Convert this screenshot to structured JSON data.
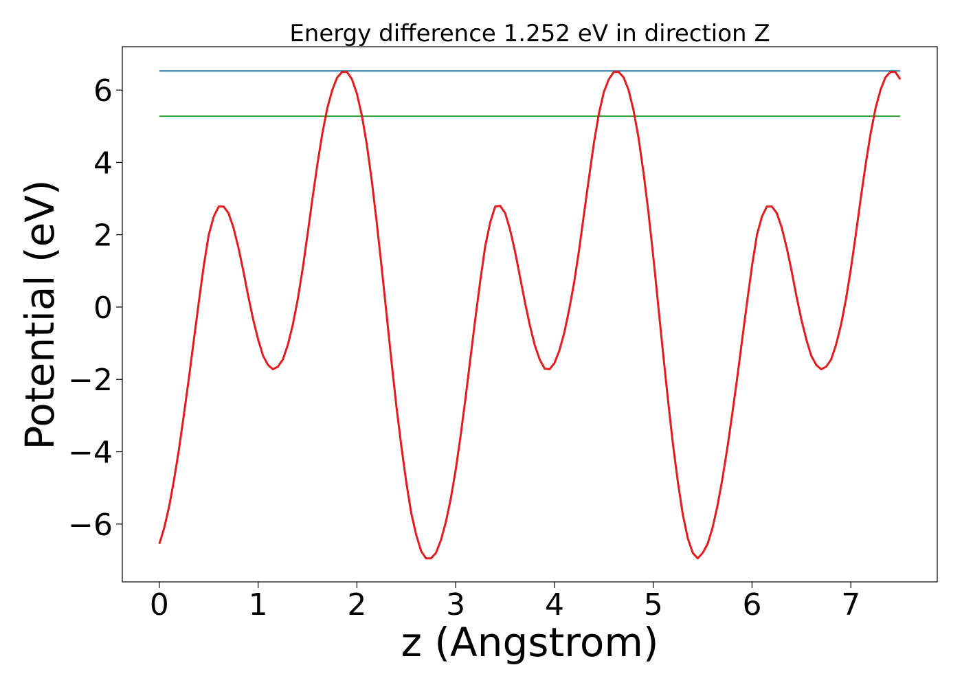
{
  "chart_data": {
    "type": "line",
    "title": "Energy difference 1.252 eV in direction Z",
    "xlabel": "z (Angstrom)",
    "ylabel": "Potential (eV)",
    "xlim": [
      -0.375,
      7.875
    ],
    "ylim": [
      -7.6,
      7.2
    ],
    "x_ticks": [
      0,
      1,
      2,
      3,
      4,
      5,
      6,
      7
    ],
    "x_tick_labels": [
      "0",
      "1",
      "2",
      "3",
      "4",
      "5",
      "6",
      "7"
    ],
    "y_ticks": [
      -6,
      -4,
      -2,
      0,
      2,
      4,
      6
    ],
    "y_tick_labels": [
      "−6",
      "−4",
      "−2",
      "0",
      "2",
      "4",
      "6"
    ],
    "grid": false,
    "legend": "none",
    "series": [
      {
        "color": "#1f77b4",
        "x": [
          0,
          7.5
        ],
        "y": [
          6.53,
          6.53
        ]
      },
      {
        "color": "#2ca02c",
        "x": [
          0,
          7.5
        ],
        "y": [
          5.28,
          5.28
        ]
      },
      {
        "color": "#e41a1c",
        "x": [
          0,
          0.05,
          0.1,
          0.15,
          0.2,
          0.25,
          0.3,
          0.35,
          0.4,
          0.45,
          0.5,
          0.55,
          0.6,
          0.65,
          0.7,
          0.75,
          0.8,
          0.85,
          0.9,
          0.95,
          1.0,
          1.05,
          1.1,
          1.15,
          1.2,
          1.25,
          1.3,
          1.35,
          1.4,
          1.45,
          1.5,
          1.55,
          1.6,
          1.65,
          1.7,
          1.75,
          1.8,
          1.85,
          1.9,
          1.95,
          2.0,
          2.05,
          2.1,
          2.15,
          2.2,
          2.25,
          2.3,
          2.35,
          2.4,
          2.45,
          2.5,
          2.55,
          2.6,
          2.65,
          2.7,
          2.75,
          2.8,
          2.85,
          2.9,
          2.95,
          3.0,
          3.05,
          3.1,
          3.15,
          3.2,
          3.25,
          3.3,
          3.35,
          3.4,
          3.45,
          3.5,
          3.55,
          3.6,
          3.65,
          3.7,
          3.75,
          3.8,
          3.85,
          3.9,
          3.95,
          4.0,
          4.05,
          4.1,
          4.15,
          4.2,
          4.25,
          4.3,
          4.35,
          4.4,
          4.45,
          4.5,
          4.55,
          4.6,
          4.65,
          4.7,
          4.75,
          4.8,
          4.85,
          4.9,
          4.95,
          5.0,
          5.05,
          5.1,
          5.15,
          5.2,
          5.25,
          5.3,
          5.35,
          5.4,
          5.45,
          5.5,
          5.55,
          5.6,
          5.65,
          5.7,
          5.75,
          5.8,
          5.85,
          5.9,
          5.95,
          6.0,
          6.05,
          6.1,
          6.15,
          6.2,
          6.25,
          6.3,
          6.35,
          6.4,
          6.45,
          6.5,
          6.55,
          6.6,
          6.65,
          6.7,
          6.75,
          6.8,
          6.85,
          6.9,
          6.95,
          7.0,
          7.05,
          7.1,
          7.15,
          7.2,
          7.25,
          7.3,
          7.35,
          7.4,
          7.45,
          7.5
        ],
        "y": [
          -6.55,
          -6.1,
          -5.5,
          -4.75,
          -3.9,
          -2.95,
          -1.95,
          -0.9,
          0.15,
          1.15,
          2.0,
          2.5,
          2.78,
          2.78,
          2.6,
          2.2,
          1.65,
          1.0,
          0.3,
          -0.35,
          -0.9,
          -1.35,
          -1.6,
          -1.72,
          -1.65,
          -1.45,
          -1.05,
          -0.5,
          0.2,
          1.05,
          2.0,
          3.0,
          3.95,
          4.8,
          5.5,
          6.0,
          6.35,
          6.5,
          6.5,
          6.3,
          5.9,
          5.3,
          4.5,
          3.5,
          2.35,
          1.1,
          -0.2,
          -1.5,
          -2.75,
          -3.85,
          -4.85,
          -5.7,
          -6.3,
          -6.75,
          -6.95,
          -6.95,
          -6.8,
          -6.45,
          -5.95,
          -5.3,
          -4.5,
          -3.55,
          -2.5,
          -1.4,
          -0.3,
          0.75,
          1.7,
          2.35,
          2.78,
          2.8,
          2.6,
          2.15,
          1.55,
          0.85,
          0.15,
          -0.5,
          -1.05,
          -1.45,
          -1.7,
          -1.72,
          -1.55,
          -1.2,
          -0.7,
          -0.05,
          0.7,
          1.6,
          2.6,
          3.6,
          4.55,
          5.35,
          5.95,
          6.3,
          6.5,
          6.5,
          6.35,
          6.0,
          5.45,
          4.7,
          3.75,
          2.65,
          1.4,
          0.05,
          -1.3,
          -2.6,
          -3.8,
          -4.85,
          -5.75,
          -6.4,
          -6.8,
          -6.95,
          -6.8,
          -6.55,
          -6.1,
          -5.5,
          -4.75,
          -3.9,
          -2.95,
          -1.95,
          -0.9,
          0.15,
          1.15,
          2.0,
          2.5,
          2.78,
          2.78,
          2.6,
          2.2,
          1.65,
          1.0,
          0.3,
          -0.35,
          -0.9,
          -1.35,
          -1.6,
          -1.72,
          -1.65,
          -1.45,
          -1.05,
          -0.5,
          0.2,
          1.05,
          2.0,
          3.0,
          3.95,
          4.8,
          5.5,
          6.0,
          6.35,
          6.5,
          6.5,
          6.3
        ]
      }
    ]
  }
}
